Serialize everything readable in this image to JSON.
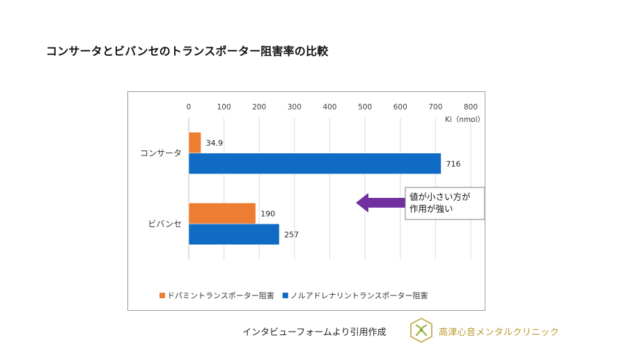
{
  "page_title": "コンサータとビバンセのトランスポーター阻害率の比較",
  "credit_text": "インタビューフォームより引用作成",
  "clinic_name": "高津心音メンタルクリニック",
  "colors": {
    "dopamine": "#ed7d31",
    "norepinephrine": "#0f6bc4",
    "arrow": "#7030a0",
    "clinic_gold": "#b89a2a"
  },
  "chart_data": {
    "type": "bar",
    "orientation": "horizontal",
    "xlabel": "Ki（nmol）",
    "xlim": [
      0,
      800
    ],
    "xticks": [
      0,
      100,
      200,
      300,
      400,
      500,
      600,
      700,
      800
    ],
    "x_axis_position": "top",
    "grid": true,
    "categories": [
      "コンサータ",
      "ビバンセ"
    ],
    "series": [
      {
        "name": "ドパミントランスポーター阻害",
        "color": "#ed7d31",
        "values": [
          34.9,
          190
        ],
        "labels": [
          "34.9",
          "190"
        ]
      },
      {
        "name": "ノルアドレナリントランスポーター阻害",
        "color": "#0f6bc4",
        "values": [
          716,
          257
        ],
        "labels": [
          "716",
          "257"
        ]
      }
    ],
    "legend_position": "bottom",
    "annotation": {
      "lines": [
        "値が小さい方が",
        "作用が強い"
      ],
      "arrow_direction": "left"
    }
  }
}
